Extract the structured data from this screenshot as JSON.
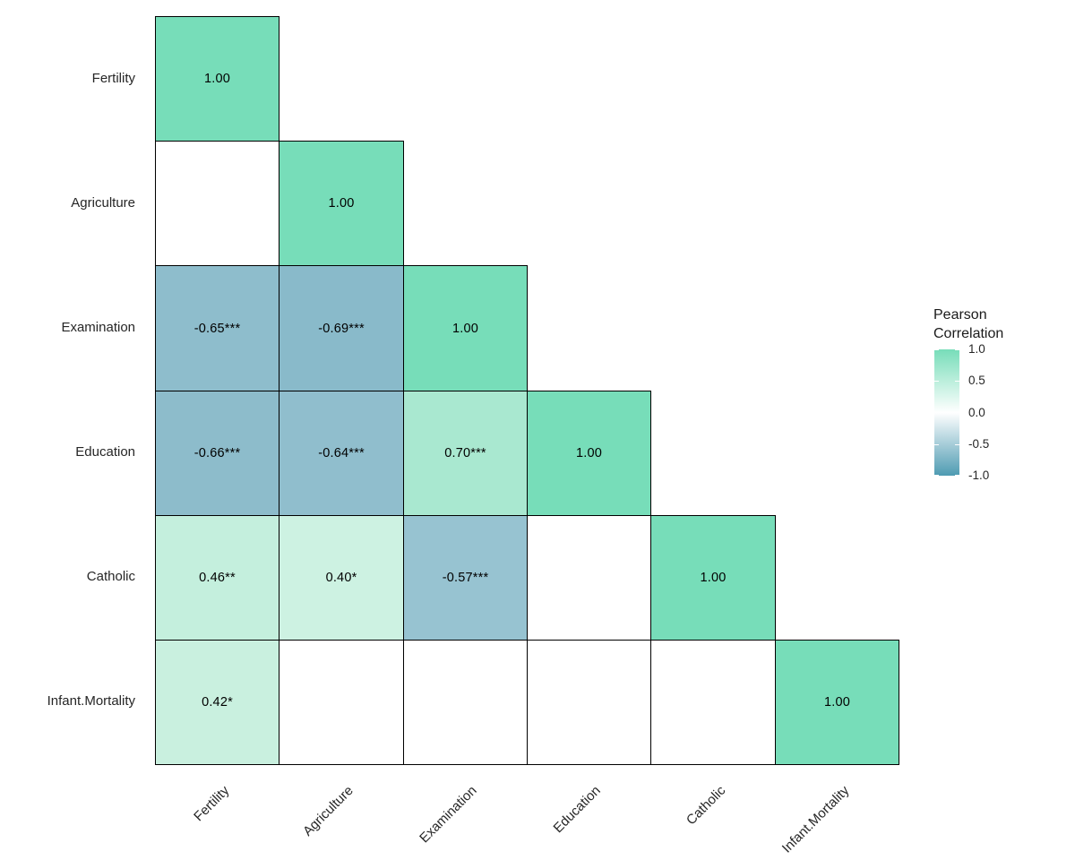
{
  "chart_data": {
    "type": "heatmap",
    "title": "",
    "variables": [
      "Fertility",
      "Agriculture",
      "Examination",
      "Education",
      "Catholic",
      "Infant.Mortality"
    ],
    "legend": {
      "title": "Pearson\nCorrelation",
      "tick_labels": [
        "1.0",
        "0.5",
        "0.0",
        "-0.5",
        "-1.0"
      ],
      "tick_values": [
        1,
        0.5,
        0,
        -0.5,
        -1
      ],
      "range": [
        -1,
        1
      ],
      "high_color": "#77DDB9",
      "mid_color": "#FFFFFF",
      "low_color": "#4E9BB2"
    },
    "colors": {
      "background": "#FFFFFF",
      "cell_border": "#000000",
      "cell_text": "#000000",
      "axis_text": "#262626"
    },
    "cells": [
      {
        "row": "Fertility",
        "col": "Fertility",
        "value": 1.0,
        "label": "1.00",
        "color": "#77DDB9"
      },
      {
        "row": "Agriculture",
        "col": "Fertility",
        "value": null,
        "label": "",
        "color": "#FFFFFF"
      },
      {
        "row": "Agriculture",
        "col": "Agriculture",
        "value": 1.0,
        "label": "1.00",
        "color": "#77DDB9"
      },
      {
        "row": "Examination",
        "col": "Fertility",
        "value": -0.65,
        "label": "-0.65***",
        "color": "#8EBDCC"
      },
      {
        "row": "Examination",
        "col": "Agriculture",
        "value": -0.69,
        "label": "-0.69***",
        "color": "#89BACA"
      },
      {
        "row": "Examination",
        "col": "Examination",
        "value": 1.0,
        "label": "1.00",
        "color": "#77DDB9"
      },
      {
        "row": "Education",
        "col": "Fertility",
        "value": -0.66,
        "label": "-0.66***",
        "color": "#8DBCCB"
      },
      {
        "row": "Education",
        "col": "Agriculture",
        "value": -0.64,
        "label": "-0.64***",
        "color": "#90BECD"
      },
      {
        "row": "Education",
        "col": "Examination",
        "value": 0.7,
        "label": "0.70***",
        "color": "#A9E8D0"
      },
      {
        "row": "Education",
        "col": "Education",
        "value": 1.0,
        "label": "1.00",
        "color": "#77DDB9"
      },
      {
        "row": "Catholic",
        "col": "Fertility",
        "value": 0.46,
        "label": "0.46**",
        "color": "#C4EFDD"
      },
      {
        "row": "Catholic",
        "col": "Agriculture",
        "value": 0.4,
        "label": "0.40*",
        "color": "#CDF2E2"
      },
      {
        "row": "Catholic",
        "col": "Examination",
        "value": -0.57,
        "label": "-0.57***",
        "color": "#97C3D1"
      },
      {
        "row": "Catholic",
        "col": "Education",
        "value": null,
        "label": "",
        "color": "#FFFFFF"
      },
      {
        "row": "Catholic",
        "col": "Catholic",
        "value": 1.0,
        "label": "1.00",
        "color": "#77DDB9"
      },
      {
        "row": "Infant.Mortality",
        "col": "Fertility",
        "value": 0.42,
        "label": "0.42*",
        "color": "#C9F0DF"
      },
      {
        "row": "Infant.Mortality",
        "col": "Agriculture",
        "value": null,
        "label": "",
        "color": "#FFFFFF"
      },
      {
        "row": "Infant.Mortality",
        "col": "Examination",
        "value": null,
        "label": "",
        "color": "#FFFFFF"
      },
      {
        "row": "Infant.Mortality",
        "col": "Education",
        "value": null,
        "label": "",
        "color": "#FFFFFF"
      },
      {
        "row": "Infant.Mortality",
        "col": "Catholic",
        "value": null,
        "label": "",
        "color": "#FFFFFF"
      },
      {
        "row": "Infant.Mortality",
        "col": "Infant.Mortality",
        "value": 1.0,
        "label": "1.00",
        "color": "#77DDB9"
      }
    ]
  }
}
